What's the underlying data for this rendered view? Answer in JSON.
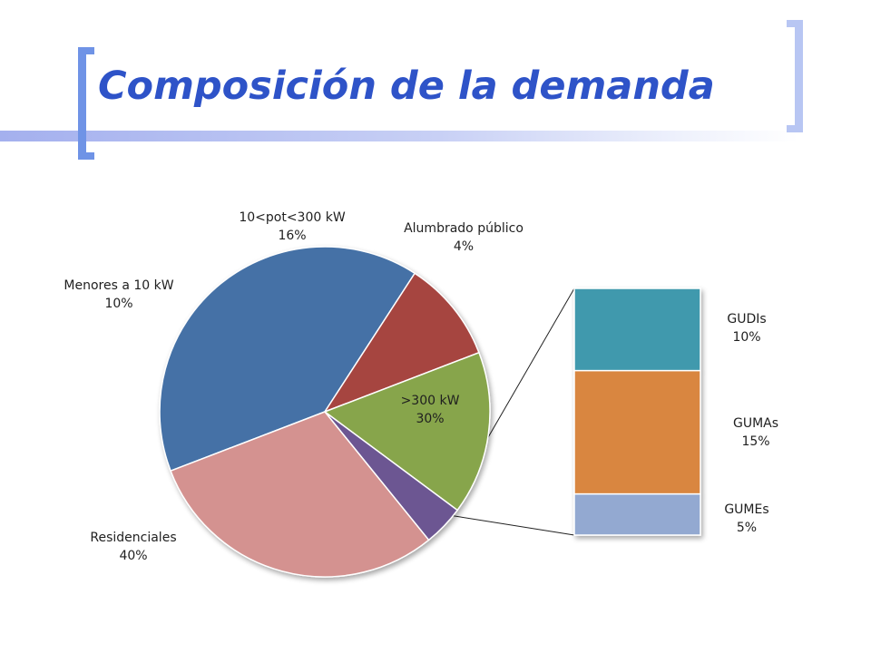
{
  "title": "Composición de la demanda",
  "colors": {
    "accent": "#2e53c8",
    "bracket_left": "#6f93e6",
    "bracket_right": "#b8c6f3"
  },
  "chart_data": {
    "type": "pie",
    "title": "",
    "sub_chart_type": "stacked-bar",
    "slices": [
      {
        "label": "Residenciales",
        "percent_label": "40%",
        "value": 40,
        "color": "#4471a6"
      },
      {
        "label": "Menores a 10 kW",
        "percent_label": "10%",
        "value": 10,
        "color": "#a64441"
      },
      {
        "label": "10<pot<300 kW",
        "percent_label": "16%",
        "value": 16,
        "color": "#87a54b"
      },
      {
        "label": "Alumbrado público",
        "percent_label": "4%",
        "value": 4,
        "color": "#6c5792"
      },
      {
        "label": ">300 kW",
        "percent_label": "30%",
        "value": 30,
        "color": "#d49290"
      }
    ],
    "breakdown": {
      "of": ">300 kW",
      "segments": [
        {
          "label": "GUDIs",
          "percent_label": "10%",
          "value": 10,
          "color": "#4199ad"
        },
        {
          "label": "GUMAs",
          "percent_label": "15%",
          "value": 15,
          "color": "#d98641"
        },
        {
          "label": "GUMEs",
          "percent_label": "5%",
          "value": 5,
          "color": "#93a9d1"
        }
      ]
    }
  }
}
